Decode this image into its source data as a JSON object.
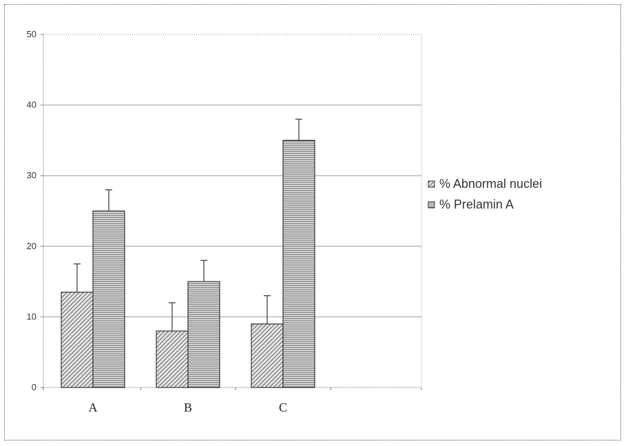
{
  "chart_data": {
    "type": "bar",
    "categories": [
      "A",
      "B",
      "C"
    ],
    "series": [
      {
        "name": "% Abnormal nuclei",
        "values": [
          13.5,
          8,
          9
        ],
        "errors": [
          4,
          4,
          4
        ],
        "pattern": "diagonal"
      },
      {
        "name": "% Prelamin A",
        "values": [
          25,
          15,
          35
        ],
        "errors": [
          3,
          3,
          3
        ],
        "pattern": "horizontal"
      }
    ],
    "ylim": [
      0,
      50
    ],
    "yticks": [
      0,
      10,
      20,
      30,
      40,
      50
    ],
    "grid": true,
    "legend_position": "right",
    "title": "",
    "xlabel": "",
    "ylabel": ""
  }
}
